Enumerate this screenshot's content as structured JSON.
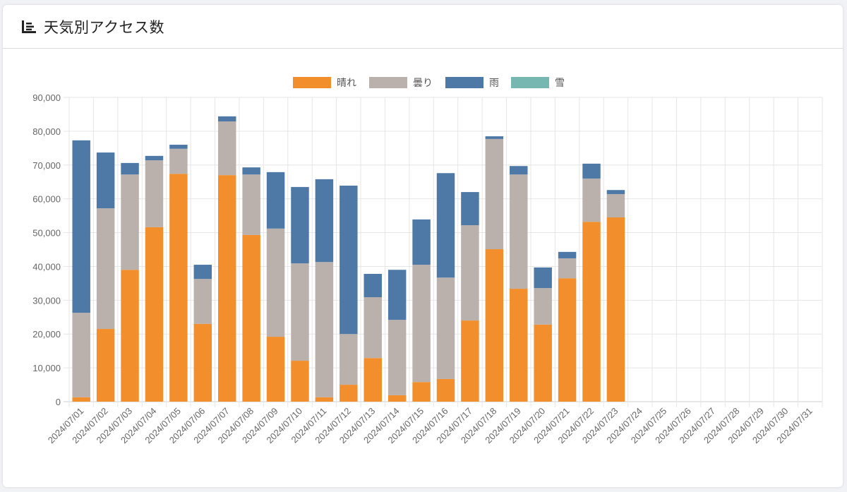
{
  "card": {
    "title": "天気別アクセス数",
    "icon": "bar-chart-icon"
  },
  "chart_data": {
    "type": "bar",
    "stacked": true,
    "title": "天気別アクセス数",
    "xlabel": "",
    "ylabel": "",
    "ylim": [
      0,
      90000
    ],
    "ytick_step": 10000,
    "yticks": [
      "0",
      "10,000",
      "20,000",
      "30,000",
      "40,000",
      "50,000",
      "60,000",
      "70,000",
      "80,000",
      "90,000"
    ],
    "grid": true,
    "legend_position": "top-center",
    "categories": [
      "2024/07/01",
      "2024/07/02",
      "2024/07/03",
      "2024/07/04",
      "2024/07/05",
      "2024/07/06",
      "2024/07/07",
      "2024/07/08",
      "2024/07/09",
      "2024/07/10",
      "2024/07/11",
      "2024/07/12",
      "2024/07/13",
      "2024/07/14",
      "2024/07/15",
      "2024/07/16",
      "2024/07/17",
      "2024/07/18",
      "2024/07/19",
      "2024/07/20",
      "2024/07/21",
      "2024/07/22",
      "2024/07/23",
      "2024/07/24",
      "2024/07/25",
      "2024/07/26",
      "2024/07/27",
      "2024/07/28",
      "2024/07/29",
      "2024/07/30",
      "2024/07/31"
    ],
    "series": [
      {
        "name": "晴れ",
        "color": "#f28f2c",
        "values": [
          1300,
          21500,
          39000,
          51600,
          67400,
          23000,
          67000,
          49300,
          19200,
          12100,
          1300,
          5000,
          12900,
          1900,
          5800,
          6700,
          24000,
          45100,
          33400,
          22800,
          36500,
          53200,
          54500,
          0,
          0,
          0,
          0,
          0,
          0,
          0,
          0
        ]
      },
      {
        "name": "曇り",
        "color": "#bab0ac",
        "values": [
          25000,
          35700,
          28200,
          19800,
          7400,
          13300,
          15900,
          17900,
          32000,
          28800,
          40000,
          15000,
          18000,
          22300,
          34700,
          30000,
          28200,
          32600,
          33800,
          10800,
          5900,
          12800,
          6900,
          0,
          0,
          0,
          0,
          0,
          0,
          0,
          0
        ]
      },
      {
        "name": "雨",
        "color": "#4e79a7",
        "values": [
          51000,
          16500,
          3400,
          1300,
          1200,
          4200,
          1500,
          2100,
          16700,
          22600,
          24500,
          43900,
          6900,
          14800,
          13400,
          30900,
          9800,
          800,
          2500,
          6100,
          1900,
          4400,
          1200,
          0,
          0,
          0,
          0,
          0,
          0,
          0,
          0
        ]
      },
      {
        "name": "雪",
        "color": "#76b7b2",
        "values": [
          0,
          0,
          0,
          0,
          0,
          0,
          0,
          0,
          0,
          0,
          0,
          0,
          0,
          0,
          0,
          0,
          0,
          0,
          0,
          0,
          0,
          0,
          0,
          0,
          0,
          0,
          0,
          0,
          0,
          0,
          0
        ]
      }
    ]
  }
}
